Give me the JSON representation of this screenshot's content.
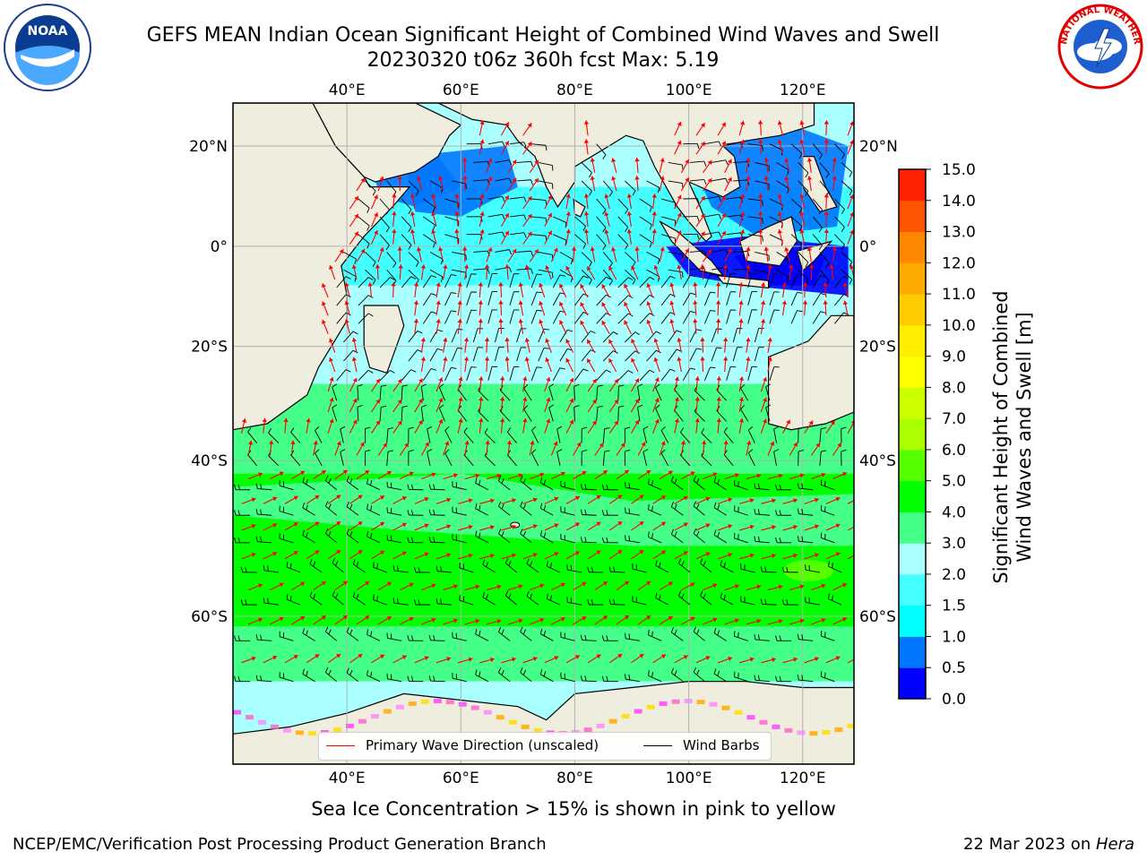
{
  "title_line1": "GEFS MEAN Indian Ocean Significant Height of Combined Wind Waves and Swell",
  "title_line2": "20230320 t06z 360h fcst   Max: 5.19",
  "logos": {
    "left": {
      "name": "noaa-logo",
      "text": "NOAA"
    },
    "right": {
      "name": "nws-logo",
      "text": "NATIONAL WEATHER SERVICE"
    }
  },
  "map": {
    "lon_ticks": [
      "40°E",
      "60°E",
      "80°E",
      "100°E",
      "120°E"
    ],
    "lat_ticks": [
      "20°N",
      "0°",
      "20°S",
      "40°S",
      "60°S"
    ],
    "lon_range": [
      20,
      129
    ],
    "lat_range": [
      -72,
      28
    ],
    "colors": {
      "land": "#efedde",
      "coast": "#000000",
      "wave_arrow": "#ff0000",
      "wind_barb": "#000000",
      "grid": "#b0b0b0"
    }
  },
  "colorbar": {
    "label": "Significant Height of Combined Wind Waves and Swell [m]",
    "ticks": [
      "0.0",
      "0.5",
      "1.0",
      "1.5",
      "2.0",
      "3.0",
      "4.0",
      "5.0",
      "6.0",
      "7.0",
      "8.0",
      "9.0",
      "10.0",
      "11.0",
      "12.0",
      "13.0",
      "14.0",
      "15.0"
    ],
    "colors": [
      "#0000ff",
      "#0077ff",
      "#00ffff",
      "#44ffff",
      "#aaffff",
      "#44ff88",
      "#00ff00",
      "#55ff00",
      "#aaff00",
      "#ccff00",
      "#ffff00",
      "#ffee00",
      "#ffcc00",
      "#ffaa00",
      "#ff8800",
      "#ff5500",
      "#ff2200"
    ]
  },
  "legend": {
    "wave_label": "Primary Wave Direction (unscaled)",
    "wind_label": "Wind Barbs"
  },
  "ice_note": "Sea Ice Concentration > 15% is shown in pink to yellow",
  "footer": {
    "left": "NCEP/EMC/Verification Post Processing Product Generation Branch",
    "right_date": "22 Mar 2023 on ",
    "right_host": "Hera"
  }
}
